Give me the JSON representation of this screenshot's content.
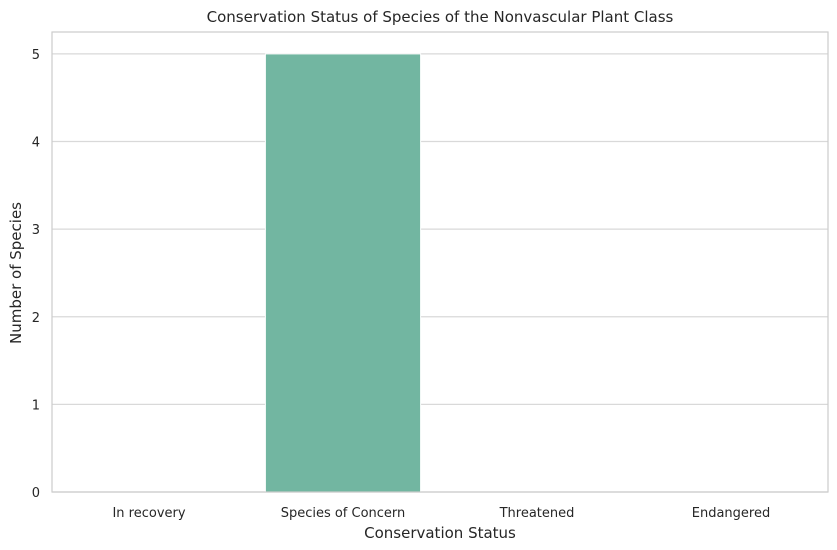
{
  "chart_data": {
    "type": "bar",
    "title": "Conservation Status of Species of the Nonvascular Plant Class",
    "xlabel": "Conservation Status",
    "ylabel": "Number of Species",
    "categories": [
      "In recovery",
      "Species of Concern",
      "Threatened",
      "Endangered"
    ],
    "values": [
      0,
      5,
      0,
      0
    ],
    "ylim": [
      0,
      5.25
    ],
    "yticks": [
      0,
      1,
      2,
      3,
      4,
      5
    ],
    "grid": "horizontal",
    "bar_color": "#72b6a1",
    "grid_color": "#d9d9d9",
    "axis_color": "#cccccc"
  }
}
